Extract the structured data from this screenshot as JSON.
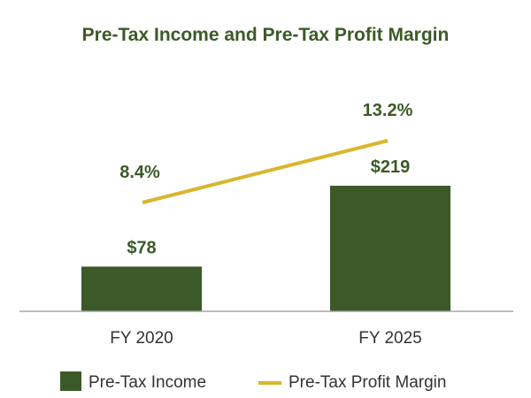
{
  "chart_data": {
    "type": "bar",
    "title": "Pre-Tax Income and Pre-Tax Profit Margin",
    "categories": [
      "FY 2020",
      "FY 2025"
    ],
    "series": [
      {
        "name": "Pre-Tax Income",
        "type": "bar",
        "values": [
          78,
          219
        ],
        "labels": [
          "$78",
          "$219"
        ],
        "color": "#3b5a27"
      },
      {
        "name": "Pre-Tax Profit Margin",
        "type": "line",
        "values": [
          8.4,
          13.2
        ],
        "labels": [
          "8.4%",
          "13.2%"
        ],
        "color": "#d9b62c"
      }
    ],
    "legend": "bottom",
    "grid": false,
    "colors": {
      "title": "#3b5a27",
      "text": "#333333",
      "axis": "#a6a6a6"
    }
  }
}
